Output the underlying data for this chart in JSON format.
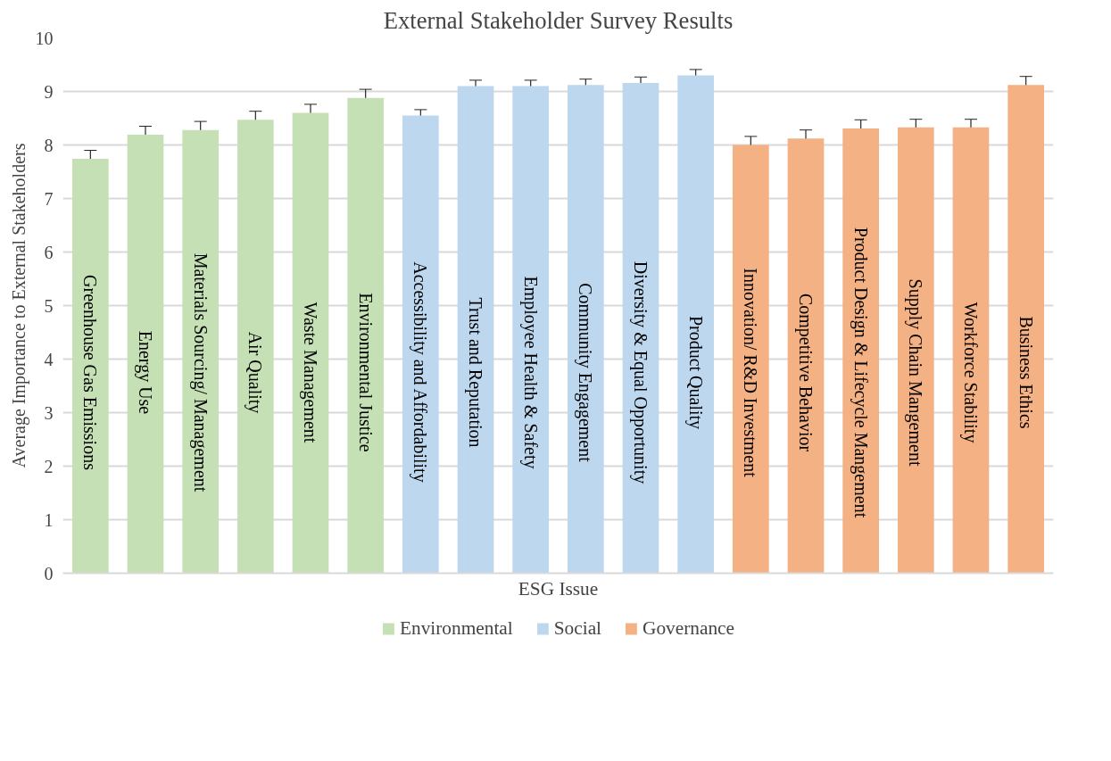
{
  "chart_data": {
    "type": "bar",
    "title": "External Stakeholder Survey Results",
    "xlabel": "ESG Issue",
    "ylabel": "Average Importance to External Stakeholders",
    "categories": [
      "Greenhouse Gas Emissions",
      "Energy Use",
      "Materials Sourcing/ Management",
      "Air Quality",
      "Waste Management",
      "Environmental Justice",
      "Accessibility and Affordability",
      "Trust and Reputation",
      "Employee Health & Safety",
      "Community Engagement",
      "Diversity & Equal Opportunity",
      "Product Quality",
      "Innovation/ R&D Investment",
      "Competitive Behavior",
      "Product Design & Lifecycle Mangement",
      "Supply Chain Mangement",
      "Workforce Stability",
      "Business Ethics"
    ],
    "series": [
      {
        "name": "Environmental",
        "color": "#c5e0b4",
        "values": [
          7.74,
          8.19,
          8.28,
          8.47,
          8.6,
          8.88,
          null,
          null,
          null,
          null,
          null,
          null,
          null,
          null,
          null,
          null,
          null,
          null
        ],
        "errors": [
          0.16,
          0.16,
          0.16,
          0.16,
          0.16,
          0.16,
          null,
          null,
          null,
          null,
          null,
          null,
          null,
          null,
          null,
          null,
          null,
          null
        ]
      },
      {
        "name": "Social",
        "color": "#bdd7ee",
        "values": [
          null,
          null,
          null,
          null,
          null,
          null,
          8.55,
          9.1,
          9.1,
          9.12,
          9.16,
          9.3,
          null,
          null,
          null,
          null,
          null,
          null
        ],
        "errors": [
          null,
          null,
          null,
          null,
          null,
          null,
          0.11,
          0.11,
          0.11,
          0.11,
          0.11,
          0.11,
          null,
          null,
          null,
          null,
          null,
          null
        ]
      },
      {
        "name": "Governance",
        "color": "#f4b183",
        "values": [
          null,
          null,
          null,
          null,
          null,
          null,
          null,
          null,
          null,
          null,
          null,
          null,
          8.0,
          8.12,
          8.31,
          8.33,
          8.33,
          9.12
        ],
        "errors": [
          null,
          null,
          null,
          null,
          null,
          null,
          null,
          null,
          null,
          null,
          null,
          null,
          0.16,
          0.16,
          0.16,
          0.15,
          0.15,
          0.16
        ]
      }
    ],
    "ylim": [
      0,
      10
    ],
    "yticks": [
      0,
      1,
      2,
      3,
      4,
      5,
      6,
      7,
      8,
      9,
      10
    ],
    "grid": "y",
    "legend": "bottom"
  }
}
